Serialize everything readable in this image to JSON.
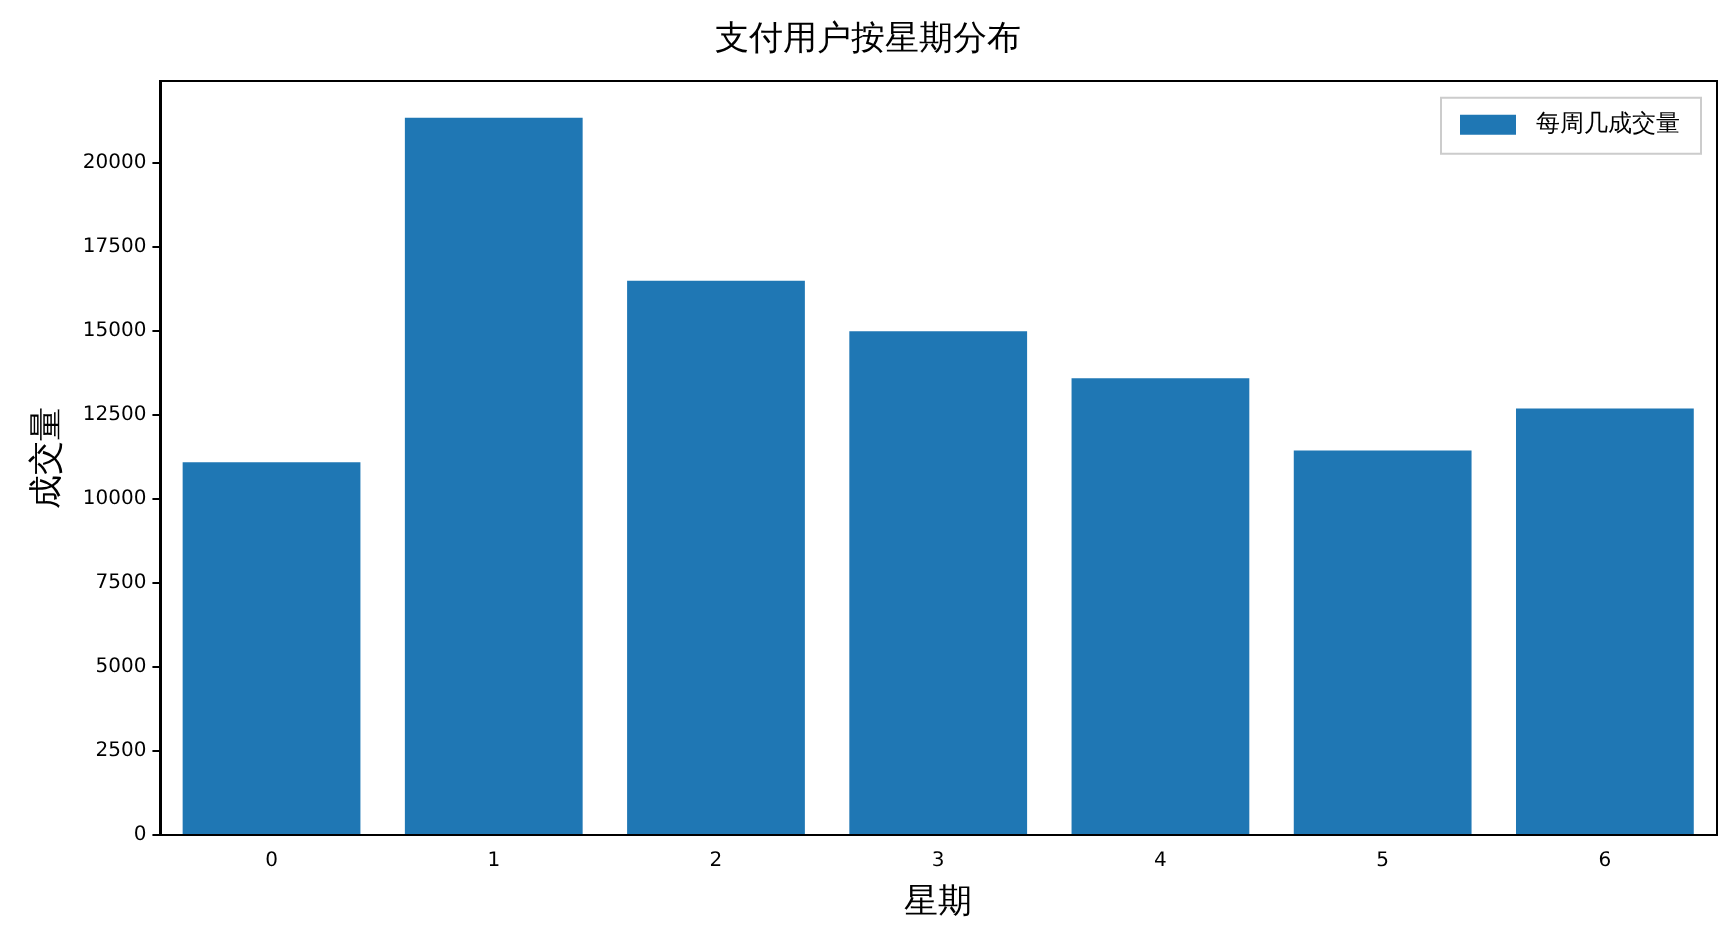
{
  "chart_data": {
    "type": "bar",
    "title": "支付用户按星期分布",
    "xlabel": "星期",
    "ylabel": "成交量",
    "categories": [
      "0",
      "1",
      "2",
      "3",
      "4",
      "5",
      "6"
    ],
    "series": [
      {
        "name": "每周几成交量",
        "color": "#1f77b4",
        "values": [
          11100,
          21350,
          16500,
          15000,
          13600,
          11450,
          12700
        ]
      }
    ],
    "ylim": [
      0,
      22450
    ],
    "yticks": [
      0,
      2500,
      5000,
      7500,
      10000,
      12500,
      15000,
      17500,
      20000
    ],
    "grid": false,
    "legend": "top right"
  }
}
